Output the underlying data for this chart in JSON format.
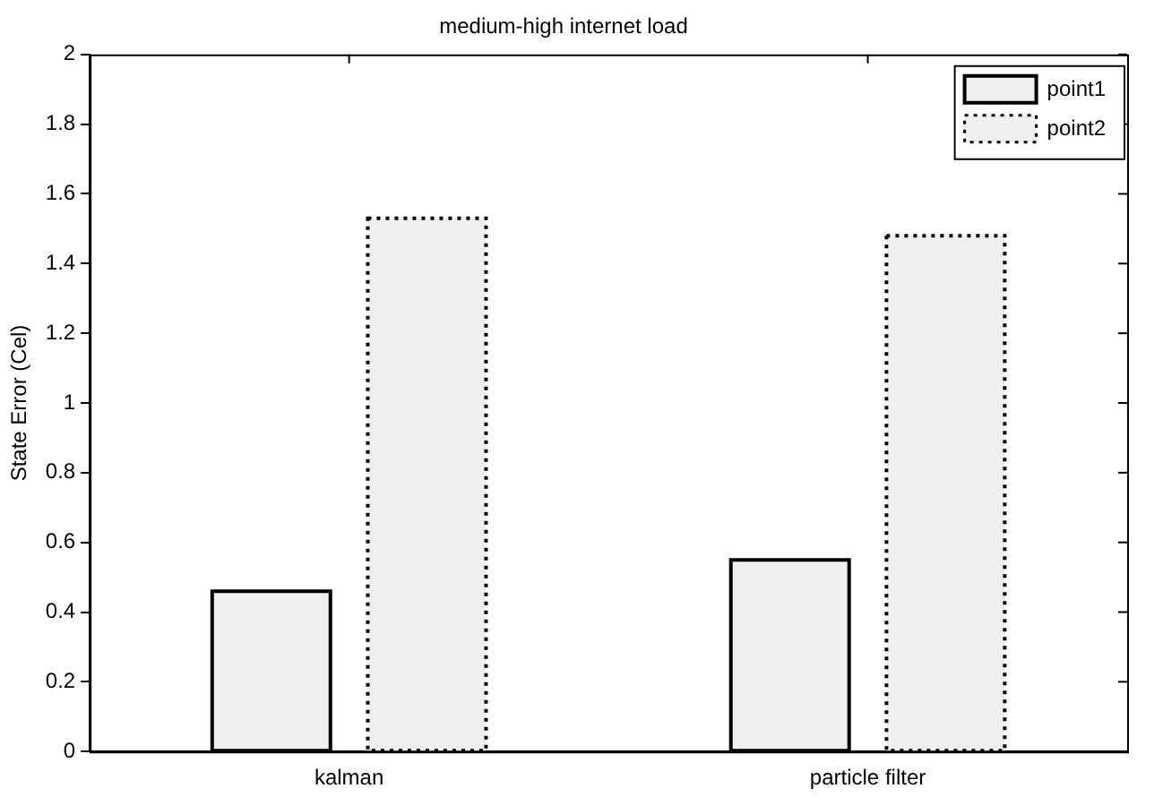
{
  "chart_data": {
    "type": "bar",
    "title": "medium-high internet load",
    "ylabel": "State Error (Cel)",
    "categories": [
      "kalman",
      "particle filter"
    ],
    "series": [
      {
        "name": "point1",
        "color": "#efefef",
        "line_style": "solid",
        "values": [
          0.46,
          0.55
        ]
      },
      {
        "name": "point2",
        "color": "#efefef",
        "line_style": "dotted",
        "values": [
          1.53,
          1.48
        ]
      }
    ],
    "ylim": [
      0,
      2
    ],
    "yticks": [
      0,
      0.2,
      0.4,
      0.6,
      0.8,
      1,
      1.2,
      1.4,
      1.6,
      1.8,
      2
    ],
    "grid": false,
    "legend": "top right"
  }
}
